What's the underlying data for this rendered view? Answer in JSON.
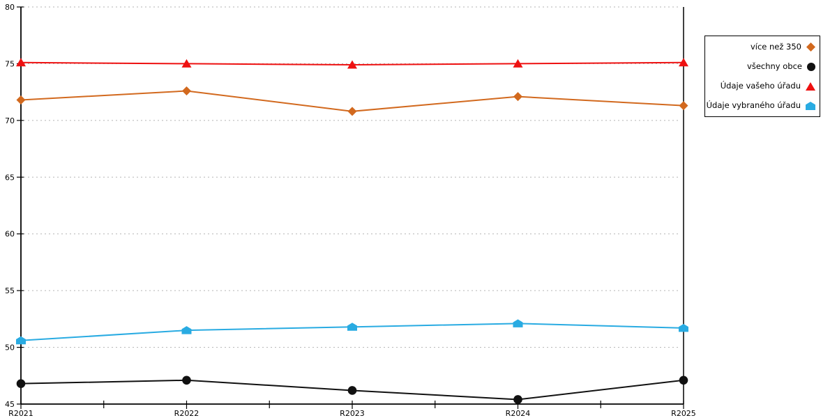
{
  "chart_data": {
    "type": "line",
    "x_categories": [
      "R2021",
      "R2022",
      "R2023",
      "R2024",
      "R2025"
    ],
    "series": [
      {
        "name": "více než 350",
        "marker": "diamond",
        "color": "#D2691E",
        "values": [
          71.8,
          72.6,
          70.8,
          72.1,
          71.3
        ]
      },
      {
        "name": "všechny obce",
        "marker": "circle",
        "color": "#111111",
        "values": [
          46.8,
          47.1,
          46.2,
          45.4,
          47.1
        ]
      },
      {
        "name": "Údaje vašeho úřadu",
        "marker": "triangle",
        "color": "#EE1111",
        "values": [
          75.1,
          75.0,
          74.9,
          75.0,
          75.1
        ]
      },
      {
        "name": "Údaje vybraného úřadu",
        "marker": "pentagon",
        "color": "#29ABE2",
        "values": [
          50.6,
          51.5,
          51.8,
          52.1,
          51.7
        ]
      }
    ],
    "ylim": [
      45,
      80
    ],
    "yticks": [
      45,
      50,
      55,
      60,
      65,
      70,
      75,
      80
    ],
    "grid": "horizontal-dashed",
    "grid_color": "#b3b3b3",
    "axis_color": "#000000",
    "legend_position": "outside-top-right",
    "title": ""
  }
}
